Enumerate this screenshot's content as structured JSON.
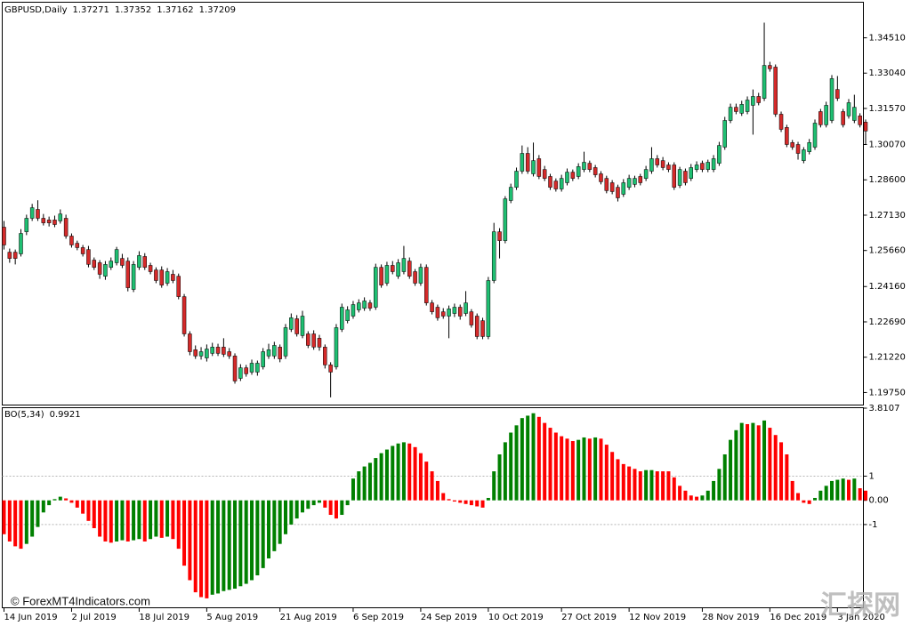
{
  "chart_data": [
    {
      "type": "candlestick",
      "symbol": "GBPUSD,Daily",
      "ohlc_header": [
        1.37271,
        1.37352,
        1.37162,
        1.37209
      ],
      "categories": [
        "14 Jun 2019",
        null,
        null,
        null,
        null,
        null,
        null,
        null,
        null,
        null,
        null,
        null,
        "2 Jul 2019",
        null,
        null,
        null,
        null,
        null,
        null,
        null,
        null,
        null,
        null,
        null,
        "18 Jul 2019",
        null,
        null,
        null,
        null,
        null,
        null,
        null,
        null,
        null,
        null,
        null,
        "5 Aug 2019",
        null,
        null,
        null,
        null,
        null,
        null,
        null,
        null,
        null,
        null,
        null,
        null,
        "21 Aug 2019",
        null,
        null,
        null,
        null,
        null,
        null,
        null,
        null,
        null,
        null,
        null,
        null,
        "6 Sep 2019",
        null,
        null,
        null,
        null,
        null,
        null,
        null,
        null,
        null,
        null,
        null,
        "24 Sep 2019",
        null,
        null,
        null,
        null,
        null,
        null,
        null,
        null,
        null,
        null,
        null,
        "10 Oct 2019",
        null,
        null,
        null,
        null,
        null,
        null,
        null,
        null,
        null,
        null,
        null,
        null,
        "27 Oct 2019",
        null,
        null,
        null,
        null,
        null,
        null,
        null,
        null,
        null,
        null,
        null,
        "12 Nov 2019",
        null,
        null,
        null,
        null,
        null,
        null,
        null,
        null,
        null,
        null,
        null,
        null,
        "28 Nov 2019",
        null,
        null,
        null,
        null,
        null,
        null,
        null,
        null,
        null,
        null,
        null,
        "16 Dec 2019",
        null,
        null,
        null,
        null,
        null,
        null,
        null,
        null,
        null,
        null,
        null,
        "3 Jan 2020",
        null,
        null,
        null,
        null,
        null
      ],
      "open": [
        1.2663,
        1.2559,
        1.2559,
        1.2552,
        1.2644,
        1.27,
        1.2737,
        1.27,
        1.2693,
        1.2693,
        1.2689,
        1.27,
        1.2626,
        1.2596,
        1.2578,
        1.257,
        1.2526,
        1.2515,
        1.2459,
        1.2496,
        1.2515,
        1.2533,
        1.2522,
        1.2404,
        1.2496,
        1.2541,
        1.2504,
        1.2485,
        1.2485,
        1.243,
        1.2467,
        1.2459,
        1.2374,
        1.2219,
        1.2153,
        1.2127,
        1.2119,
        1.2138,
        1.2164,
        1.2164,
        1.2145,
        1.2127,
        1.2034,
        1.2078,
        1.206,
        1.206,
        1.2082,
        1.2127,
        1.2127,
        1.2164,
        1.2127,
        1.2238,
        1.2282,
        1.2212,
        1.2219,
        1.2219,
        1.2201,
        1.2164,
        1.209,
        1.2082,
        1.2238,
        1.2274,
        1.2293,
        1.2319,
        1.2326,
        1.2348,
        1.233,
        1.2496,
        1.243,
        1.2504,
        1.2459,
        1.2478,
        1.2522,
        1.2478,
        1.243,
        1.2496,
        1.2348,
        1.233,
        1.2311,
        1.2293,
        1.2304,
        1.233,
        1.2304,
        1.2311,
        1.2293,
        1.2274,
        1.2208,
        1.2441,
        1.2644,
        1.2607,
        1.2774,
        1.2829,
        1.2896,
        1.297,
        1.2885,
        1.2948,
        1.2903,
        1.2874,
        1.2855,
        1.2822,
        1.2848,
        1.2892,
        1.2874,
        1.2903,
        1.2929,
        1.2911,
        1.2885,
        1.2866,
        1.2848,
        1.2829,
        1.28,
        1.2829,
        1.2841,
        1.2874,
        1.2866,
        1.2896,
        1.2948,
        1.294,
        1.2922,
        1.2922,
        1.2837,
        1.2896,
        1.2866,
        1.2903,
        1.2929,
        1.2903,
        1.2903,
        1.2929,
        1.2996,
        1.3107,
        1.3162,
        1.3137,
        1.3144,
        1.317,
        1.3207,
        1.3199,
        1.3336,
        1.3329,
        1.3133,
        1.3078,
        1.3015,
        1.3007,
        1.294,
        1.2977,
        1.2996,
        1.3144,
        1.3089,
        1.3107,
        1.3236,
        1.3144,
        1.3126,
        1.3107,
        1.3126,
        1.31
      ],
      "high": [
        1.2689,
        1.2574,
        1.257,
        1.2655,
        1.2715,
        1.276,
        1.2775,
        1.2718,
        1.2707,
        1.2711,
        1.2737,
        1.2715,
        1.2637,
        1.2607,
        1.2589,
        1.2585,
        1.2537,
        1.2526,
        1.2522,
        1.2537,
        1.2581,
        1.2552,
        1.2537,
        1.2522,
        1.2563,
        1.2555,
        1.2515,
        1.2496,
        1.25,
        1.2493,
        1.2485,
        1.247,
        1.2385,
        1.223,
        1.2171,
        1.2164,
        1.2175,
        1.2182,
        1.2178,
        1.2201,
        1.216,
        1.2138,
        1.2093,
        1.209,
        1.2112,
        1.2108,
        1.216,
        1.2178,
        1.2186,
        1.2175,
        1.226,
        1.2304,
        1.2297,
        1.2315,
        1.223,
        1.2234,
        1.2215,
        1.2175,
        1.2101,
        1.226,
        1.2345,
        1.2334,
        1.2356,
        1.2363,
        1.2371,
        1.236,
        1.2511,
        1.2508,
        1.2519,
        1.2522,
        1.253,
        1.2585,
        1.2537,
        1.2489,
        1.2511,
        1.2508,
        1.236,
        1.2341,
        1.2326,
        1.2337,
        1.2345,
        1.2341,
        1.2397,
        1.2322,
        1.2304,
        1.2286,
        1.2456,
        1.2681,
        1.2659,
        1.2792,
        1.2844,
        1.2911,
        1.3003,
        1.2996,
        1.3015,
        1.2963,
        1.2918,
        1.2885,
        1.2866,
        1.2881,
        1.2907,
        1.2903,
        1.2929,
        1.2977,
        1.294,
        1.2922,
        1.2896,
        1.2877,
        1.2859,
        1.284,
        1.2863,
        1.2881,
        1.2877,
        1.2885,
        1.2918,
        1.2996,
        1.2963,
        1.2955,
        1.2933,
        1.2933,
        1.2914,
        1.2907,
        1.2926,
        1.2937,
        1.294,
        1.2944,
        1.2963,
        1.3018,
        1.3122,
        1.3177,
        1.3177,
        1.3189,
        1.3207,
        1.3236,
        1.3222,
        1.3514,
        1.3351,
        1.334,
        1.3144,
        1.3089,
        1.3026,
        1.3018,
        1.2996,
        1.303,
        1.3111,
        1.3155,
        1.3185,
        1.3296,
        1.3292,
        1.3155,
        1.3196,
        1.3214,
        1.3137,
        1.3111
      ],
      "low": [
        1.257,
        1.2515,
        1.2508,
        1.2541,
        1.263,
        1.2689,
        1.2689,
        1.267,
        1.2666,
        1.2663,
        1.2678,
        1.2615,
        1.2578,
        1.2567,
        1.2541,
        1.2496,
        1.2485,
        1.2448,
        1.2444,
        1.2485,
        1.2504,
        1.2493,
        1.2396,
        1.2393,
        1.2485,
        1.2485,
        1.2467,
        1.243,
        1.2411,
        1.2419,
        1.243,
        1.2363,
        1.2208,
        1.213,
        1.2115,
        1.2112,
        1.2104,
        1.2127,
        1.2127,
        1.2123,
        1.2115,
        1.2012,
        1.2023,
        1.2041,
        1.2049,
        1.2045,
        1.2071,
        1.2115,
        1.2115,
        1.2101,
        1.2115,
        1.2227,
        1.2208,
        1.2201,
        1.216,
        1.2153,
        1.2149,
        1.2075,
        1.1955,
        1.2071,
        1.2227,
        1.2263,
        1.2282,
        1.2308,
        1.2315,
        1.2315,
        1.2319,
        1.2411,
        1.2419,
        1.2467,
        1.2448,
        1.2467,
        1.2448,
        1.2419,
        1.2419,
        1.2337,
        1.23,
        1.2274,
        1.2282,
        1.2201,
        1.2289,
        1.2278,
        1.2293,
        1.2245,
        1.2197,
        1.2197,
        1.2197,
        1.243,
        1.2533,
        1.2596,
        1.2763,
        1.2818,
        1.2885,
        1.2885,
        1.2874,
        1.2863,
        1.2855,
        1.2818,
        1.2811,
        1.2811,
        1.2837,
        1.2855,
        1.2863,
        1.2892,
        1.2892,
        1.287,
        1.2841,
        1.2804,
        1.28,
        1.277,
        1.2789,
        1.2818,
        1.2829,
        1.2837,
        1.2855,
        1.2885,
        1.2911,
        1.29,
        1.2892,
        1.2818,
        1.2826,
        1.2837,
        1.2855,
        1.2892,
        1.2892,
        1.2892,
        1.2892,
        1.2918,
        1.2985,
        1.3096,
        1.3133,
        1.3126,
        1.3133,
        1.3048,
        1.317,
        1.3188,
        1.331,
        1.3122,
        1.3059,
        1.2996,
        1.2985,
        1.2944,
        1.2929,
        1.2966,
        1.2985,
        1.3078,
        1.3078,
        1.3096,
        1.3188,
        1.3078,
        1.3115,
        1.3096,
        1.3078,
        1.3007
      ],
      "close": [
        1.2589,
        1.2533,
        1.2533,
        1.2637,
        1.27,
        1.2744,
        1.27,
        1.2681,
        1.2681,
        1.2674,
        1.2718,
        1.2626,
        1.2589,
        1.2578,
        1.2552,
        1.2508,
        1.2496,
        1.2467,
        1.2508,
        1.2522,
        1.257,
        1.2504,
        1.2411,
        1.2508,
        1.2545,
        1.2496,
        1.2478,
        1.2441,
        1.2422,
        1.2478,
        1.2441,
        1.2374,
        1.2219,
        1.2145,
        1.2127,
        1.2145,
        1.2156,
        1.2164,
        1.2138,
        1.2134,
        1.2127,
        1.2023,
        1.2078,
        1.2053,
        1.2097,
        1.2097,
        1.2145,
        1.2153,
        1.2171,
        1.2115,
        1.2245,
        1.2286,
        1.2219,
        1.2293,
        1.2171,
        1.2164,
        1.2164,
        1.209,
        1.206,
        1.2245,
        1.233,
        1.2319,
        1.2341,
        1.2348,
        1.2356,
        1.2326,
        1.2496,
        1.2422,
        1.2504,
        1.2478,
        1.2515,
        1.2533,
        1.2459,
        1.243,
        1.2496,
        1.2348,
        1.2311,
        1.2286,
        1.2293,
        1.2323,
        1.233,
        1.2293,
        1.2348,
        1.2256,
        1.2208,
        1.2208,
        1.2441,
        1.2644,
        1.2607,
        1.2781,
        1.2829,
        1.2896,
        1.297,
        1.2896,
        1.294,
        1.2874,
        1.2866,
        1.2829,
        1.2822,
        1.2866,
        1.2892,
        1.2866,
        1.2915,
        1.2933,
        1.2903,
        1.2881,
        1.2852,
        1.2815,
        1.2811,
        1.2785,
        1.2848,
        1.2866,
        1.2866,
        1.2848,
        1.2903,
        1.2948,
        1.2922,
        1.2911,
        1.2903,
        1.2829,
        1.2903,
        1.2848,
        1.2911,
        1.2922,
        1.2903,
        1.2933,
        1.2948,
        1.3003,
        1.3107,
        1.3162,
        1.3144,
        1.3174,
        1.3192,
        1.3207,
        1.3181,
        1.3336,
        1.3322,
        1.3133,
        1.307,
        1.3007,
        1.2996,
        1.297,
        1.2985,
        1.3015,
        1.3096,
        1.3089,
        1.317,
        1.3281,
        1.3199,
        1.3089,
        1.3181,
        1.3162,
        1.3089,
        1.3063
      ],
      "up_color": "#1fbf72",
      "down_color": "#d42a2a",
      "ylim": [
        1.1923,
        1.3599
      ],
      "yticks": [
        {
          "value": 1.3451,
          "label": "1.34510"
        },
        {
          "value": 1.3304,
          "label": "1.33040"
        },
        {
          "value": 1.3157,
          "label": "1.31570"
        },
        {
          "value": 1.3007,
          "label": "1.30070"
        },
        {
          "value": 1.286,
          "label": "1.28600"
        },
        {
          "value": 1.2713,
          "label": "1.27130"
        },
        {
          "value": 1.2566,
          "label": "1.25660"
        },
        {
          "value": 1.2416,
          "label": "1.24160"
        },
        {
          "value": 1.2269,
          "label": "1.22690"
        },
        {
          "value": 1.2122,
          "label": "1.21220"
        },
        {
          "value": 1.1975,
          "label": "1.19750"
        }
      ]
    },
    {
      "type": "bar",
      "title": "BO(5,34)",
      "last_value": 0.9921,
      "values": [
        -1.4,
        -1.7,
        -1.9,
        -2.0,
        -1.8,
        -1.5,
        -1.1,
        -0.5,
        -0.2,
        0.05,
        0.15,
        0.08,
        -0.1,
        -0.3,
        -0.55,
        -0.85,
        -1.15,
        -1.5,
        -1.7,
        -1.75,
        -1.7,
        -1.65,
        -1.7,
        -1.65,
        -1.6,
        -1.7,
        -1.6,
        -1.5,
        -1.55,
        -1.5,
        -1.6,
        -2.0,
        -2.7,
        -3.3,
        -3.8,
        -4.0,
        -4.05,
        -3.9,
        -3.85,
        -3.75,
        -3.7,
        -3.65,
        -3.55,
        -3.45,
        -3.3,
        -3.1,
        -2.8,
        -2.4,
        -2.1,
        -1.8,
        -1.4,
        -1.0,
        -0.75,
        -0.5,
        -0.35,
        -0.2,
        -0.1,
        -0.3,
        -0.6,
        -0.75,
        -0.6,
        -0.2,
        0.9,
        1.2,
        1.4,
        1.55,
        1.75,
        1.95,
        2.1,
        2.25,
        2.35,
        2.4,
        2.35,
        2.2,
        1.95,
        1.6,
        1.2,
        0.8,
        0.3,
        0.05,
        -0.05,
        -0.1,
        -0.15,
        -0.2,
        -0.25,
        -0.3,
        0.1,
        1.2,
        1.9,
        2.4,
        2.8,
        3.1,
        3.4,
        3.5,
        3.6,
        3.45,
        3.2,
        3.0,
        2.8,
        2.65,
        2.55,
        2.45,
        2.5,
        2.6,
        2.55,
        2.6,
        2.55,
        2.3,
        2.0,
        1.7,
        1.5,
        1.4,
        1.3,
        1.2,
        1.25,
        1.25,
        1.2,
        1.2,
        1.2,
        0.95,
        0.6,
        0.4,
        0.2,
        0.15,
        0.2,
        0.4,
        0.8,
        1.3,
        1.9,
        2.5,
        2.9,
        3.2,
        3.15,
        3.2,
        3.1,
        3.3,
        3.0,
        2.7,
        2.4,
        1.9,
        0.8,
        0.3,
        -0.1,
        -0.15,
        0.1,
        0.4,
        0.6,
        0.8,
        0.85,
        0.9,
        0.85,
        0.9,
        0.5,
        0.4
      ],
      "colors": [
        "red",
        "red",
        "red",
        "red",
        "green",
        "green",
        "green",
        "green",
        "green",
        "green",
        "green",
        "red",
        "red",
        "red",
        "red",
        "red",
        "red",
        "red",
        "red",
        "red",
        "green",
        "green",
        "red",
        "green",
        "green",
        "red",
        "green",
        "green",
        "red",
        "green",
        "red",
        "red",
        "red",
        "red",
        "red",
        "red",
        "red",
        "green",
        "green",
        "green",
        "green",
        "green",
        "green",
        "green",
        "green",
        "green",
        "green",
        "green",
        "green",
        "green",
        "green",
        "green",
        "green",
        "green",
        "green",
        "green",
        "green",
        "red",
        "red",
        "red",
        "green",
        "green",
        "green",
        "green",
        "green",
        "green",
        "green",
        "green",
        "green",
        "green",
        "green",
        "green",
        "red",
        "red",
        "red",
        "red",
        "red",
        "red",
        "red",
        "red",
        "red",
        "red",
        "red",
        "red",
        "red",
        "red",
        "green",
        "green",
        "green",
        "green",
        "green",
        "green",
        "green",
        "green",
        "green",
        "red",
        "red",
        "red",
        "red",
        "red",
        "red",
        "red",
        "green",
        "green",
        "red",
        "green",
        "red",
        "red",
        "red",
        "red",
        "red",
        "red",
        "red",
        "red",
        "green",
        "green",
        "red",
        "red",
        "red",
        "red",
        "red",
        "red",
        "red",
        "red",
        "green",
        "green",
        "green",
        "green",
        "green",
        "green",
        "green",
        "green",
        "red",
        "green",
        "red",
        "green",
        "red",
        "red",
        "red",
        "red",
        "red",
        "red",
        "red",
        "red",
        "green",
        "green",
        "green",
        "green",
        "green",
        "green",
        "red",
        "green",
        "red",
        "red"
      ],
      "ylim": [
        -4.44,
        3.8107
      ],
      "yticks": [
        3.8107,
        1,
        {
          "value": 0,
          "label": "0.00"
        },
        -1
      ],
      "levels": [
        1,
        -1
      ]
    }
  ],
  "watermark": "© ForexMT4Indicators.com",
  "logo_text": "汇探网"
}
